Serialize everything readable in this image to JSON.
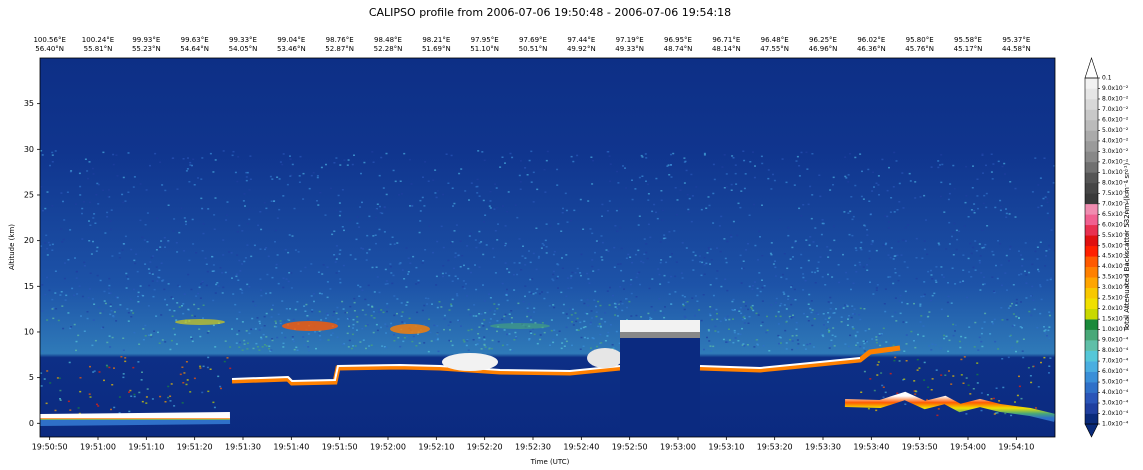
{
  "chart_data": {
    "type": "heatmap",
    "title": "CALIPSO profile from 2006-07-06 19:50:48  -  2006-07-06 19:54:18",
    "xlabel": "Time (UTC)",
    "ylabel": "Altitude (km)",
    "xlim": [
      "19:50:48",
      "19:54:18"
    ],
    "xticks": [
      "19:50:50",
      "19:51:00",
      "19:51:10",
      "19:51:20",
      "19:51:30",
      "19:51:40",
      "19:51:50",
      "19:52:00",
      "19:52:10",
      "19:52:20",
      "19:52:30",
      "19:52:40",
      "19:52:50",
      "19:53:00",
      "19:53:10",
      "19:53:20",
      "19:53:30",
      "19:53:40",
      "19:53:50",
      "19:54:00",
      "19:54:10"
    ],
    "ylim": [
      -1.5,
      40
    ],
    "yticks": [
      0,
      5,
      10,
      15,
      20,
      25,
      30,
      35
    ],
    "top_axis": [
      {
        "lon": "100.56°E",
        "lat": "56.40°N"
      },
      {
        "lon": "100.24°E",
        "lat": "55.81°N"
      },
      {
        "lon": "99.93°E",
        "lat": "55.23°N"
      },
      {
        "lon": "99.63°E",
        "lat": "54.64°N"
      },
      {
        "lon": "99.33°E",
        "lat": "54.05°N"
      },
      {
        "lon": "99.04°E",
        "lat": "53.46°N"
      },
      {
        "lon": "98.76°E",
        "lat": "52.87°N"
      },
      {
        "lon": "98.48°E",
        "lat": "52.28°N"
      },
      {
        "lon": "98.21°E",
        "lat": "51.69°N"
      },
      {
        "lon": "97.95°E",
        "lat": "51.10°N"
      },
      {
        "lon": "97.69°E",
        "lat": "50.51°N"
      },
      {
        "lon": "97.44°E",
        "lat": "49.92°N"
      },
      {
        "lon": "97.19°E",
        "lat": "49.33°N"
      },
      {
        "lon": "96.95°E",
        "lat": "48.74°N"
      },
      {
        "lon": "96.71°E",
        "lat": "48.14°N"
      },
      {
        "lon": "96.48°E",
        "lat": "47.55°N"
      },
      {
        "lon": "96.25°E",
        "lat": "46.96°N"
      },
      {
        "lon": "96.02°E",
        "lat": "46.36°N"
      },
      {
        "lon": "95.80°E",
        "lat": "45.76°N"
      },
      {
        "lon": "95.58°E",
        "lat": "45.17°N"
      },
      {
        "lon": "95.37°E",
        "lat": "44.58°N"
      }
    ],
    "colorbar": {
      "label": "Total Attenuated Backscatter 532nm (km⁻¹ sr⁻¹)",
      "under_color": "#0a2a7a",
      "over_color": "#ffffff",
      "ticks": [
        {
          "value": 0.0001,
          "label": "1.0x10⁻⁴"
        },
        {
          "value": 0.0002,
          "label": "2.0x10⁻⁴"
        },
        {
          "value": 0.0003,
          "label": "3.0x10⁻⁴"
        },
        {
          "value": 0.0004,
          "label": "4.0x10⁻⁴"
        },
        {
          "value": 0.0005,
          "label": "5.0x10⁻⁴"
        },
        {
          "value": 0.0006,
          "label": "6.0x10⁻⁴"
        },
        {
          "value": 0.0007,
          "label": "7.0x10⁻⁴"
        },
        {
          "value": 0.0008,
          "label": "8.0x10⁻⁴"
        },
        {
          "value": 0.0009,
          "label": "9.0x10⁻⁴"
        },
        {
          "value": 0.001,
          "label": "1.0x10⁻³"
        },
        {
          "value": 0.0015,
          "label": "1.5x10⁻³"
        },
        {
          "value": 0.002,
          "label": "2.0x10⁻³"
        },
        {
          "value": 0.0025,
          "label": "2.5x10⁻³"
        },
        {
          "value": 0.003,
          "label": "3.0x10⁻³"
        },
        {
          "value": 0.0035,
          "label": "3.5x10⁻³"
        },
        {
          "value": 0.004,
          "label": "4.0x10⁻³"
        },
        {
          "value": 0.0045,
          "label": "4.5x10⁻³"
        },
        {
          "value": 0.005,
          "label": "5.0x10⁻³"
        },
        {
          "value": 0.0055,
          "label": "5.5x10⁻³"
        },
        {
          "value": 0.006,
          "label": "6.0x10⁻³"
        },
        {
          "value": 0.0065,
          "label": "6.5x10⁻³"
        },
        {
          "value": 0.007,
          "label": "7.0x10⁻³"
        },
        {
          "value": 0.0075,
          "label": "7.5x10⁻³"
        },
        {
          "value": 0.008,
          "label": "8.0x10⁻³"
        },
        {
          "value": 0.01,
          "label": "1.0x10⁻²"
        },
        {
          "value": 0.02,
          "label": "2.0x10⁻²"
        },
        {
          "value": 0.03,
          "label": "3.0x10⁻²"
        },
        {
          "value": 0.04,
          "label": "4.0x10⁻²"
        },
        {
          "value": 0.05,
          "label": "5.0x10⁻²"
        },
        {
          "value": 0.06,
          "label": "6.0x10⁻²"
        },
        {
          "value": 0.07,
          "label": "7.0x10⁻²"
        },
        {
          "value": 0.08,
          "label": "8.0x10⁻²"
        },
        {
          "value": 0.09,
          "label": "9.0x10⁻²"
        },
        {
          "value": 0.1,
          "label": "0.1"
        }
      ],
      "colors": [
        "#0a2a7a",
        "#1f3f9f",
        "#2a55b8",
        "#2f70c8",
        "#3a8fd8",
        "#4aaee0",
        "#55c7d8",
        "#5fbfa8",
        "#48a878",
        "#1a8a3a",
        "#c8d800",
        "#f0e000",
        "#f8c800",
        "#ffa500",
        "#ff8000",
        "#ff5a00",
        "#ff2000",
        "#e01010",
        "#e83050",
        "#f06090",
        "#f08cb0",
        "#3a3a3a",
        "#464646",
        "#555555",
        "#707070",
        "#888888",
        "#9a9a9a",
        "#aaaaaa",
        "#bbbbbb",
        "#c8c8c8",
        "#d8d8d8",
        "#e6e6e6",
        "#f2f2f2"
      ]
    }
  }
}
